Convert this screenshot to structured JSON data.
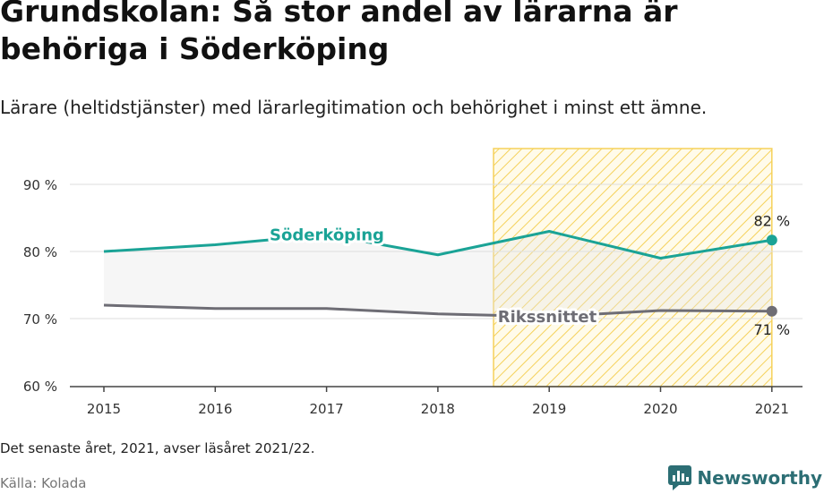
{
  "title": "Grundskolan: Så stor andel av lärarna är behöriga i Söderköping",
  "subtitle": "Lärare (heltidstjänster) med lärarlegitimation och behörighet i minst ett ämne.",
  "note": "Det senaste året, 2021, avser läsåret 2021/22.",
  "source": "Källa: Kolada",
  "brand": "Newsworthy",
  "chart_data": {
    "type": "line",
    "x": [
      "2015",
      "2016",
      "2017",
      "2018",
      "2019",
      "2020",
      "2021"
    ],
    "series": [
      {
        "name": "Söderköping",
        "color": "#1aa396",
        "values": [
          80.0,
          81.0,
          82.5,
          79.5,
          83.0,
          79.0,
          81.7
        ],
        "end_label": "82 %"
      },
      {
        "name": "Rikssnittet",
        "color": "#6e6d75",
        "values": [
          72.0,
          71.5,
          71.5,
          70.7,
          70.3,
          71.2,
          71.1
        ],
        "end_label": "71 %"
      }
    ],
    "y_ticks": [
      "60 %",
      "70 %",
      "80 %",
      "90 %"
    ],
    "y_tick_values": [
      60,
      70,
      80,
      90
    ],
    "ylim": [
      60,
      90
    ],
    "grid": true,
    "highlight_range": [
      "2018.5",
      "2021"
    ],
    "highlight_color": "#f5d15a"
  }
}
